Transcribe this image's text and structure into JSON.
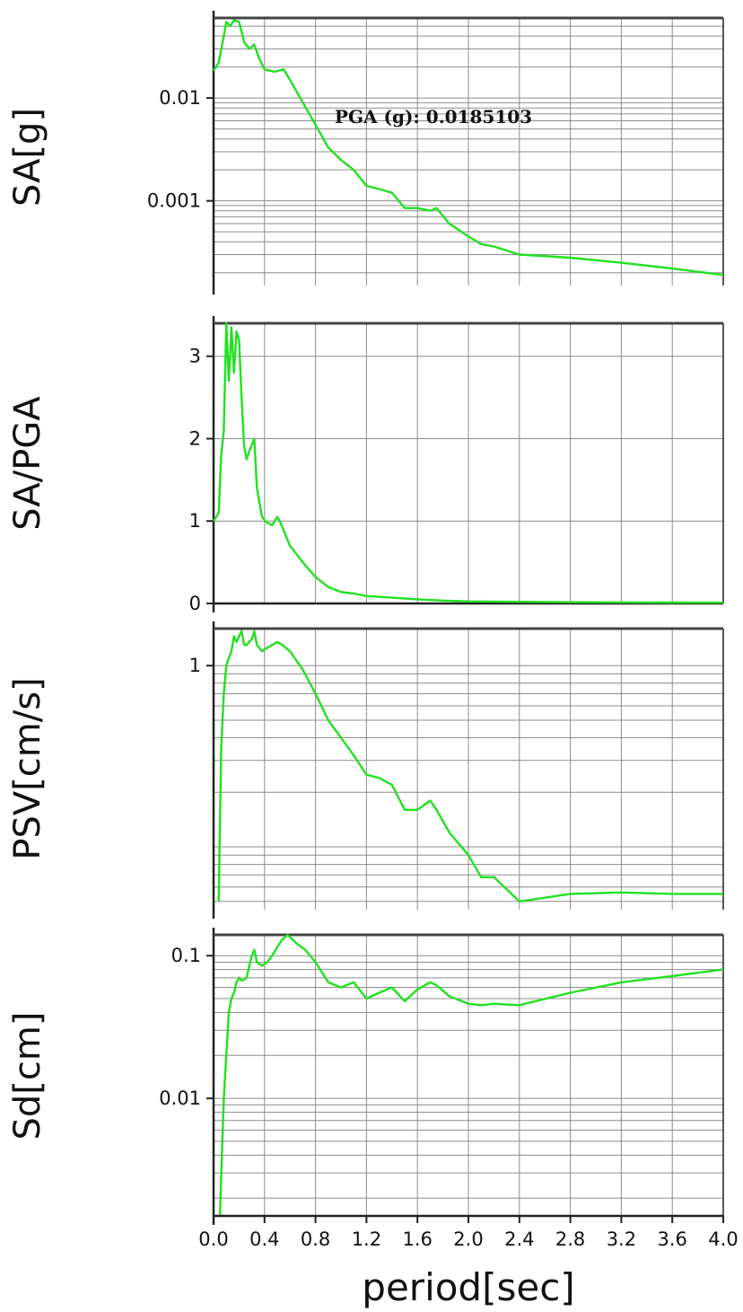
{
  "xaxis": {
    "label": "period[sec]",
    "ticks": [
      "0.0",
      "0.4",
      "0.8",
      "1.2",
      "1.6",
      "2.0",
      "2.4",
      "2.8",
      "3.2",
      "3.6",
      "4.0"
    ]
  },
  "colors": {
    "curve": "#22e022",
    "grid": "#8c8c8c",
    "frame": "#222222"
  },
  "chart_data": [
    {
      "type": "line",
      "ylabel": "SA[g]",
      "yscale": "log",
      "ylim": [
        0.00015,
        0.06
      ],
      "xlim": [
        0,
        4
      ],
      "yticks": [
        {
          "value": 0.01,
          "label": "0.01"
        },
        {
          "value": 0.001,
          "label": "0.001"
        }
      ],
      "annotation": "PGA (g): 0.0185103",
      "grid": true,
      "series": [
        {
          "x": [
            0.0,
            0.04,
            0.08,
            0.1,
            0.13,
            0.16,
            0.2,
            0.24,
            0.28,
            0.32,
            0.36,
            0.4,
            0.48,
            0.55,
            0.6,
            0.68,
            0.8,
            0.9,
            1.0,
            1.1,
            1.2,
            1.3,
            1.4,
            1.5,
            1.6,
            1.7,
            1.75,
            1.85,
            2.0,
            2.1,
            2.2,
            2.4,
            2.8,
            3.2,
            3.6,
            4.0
          ],
          "y": [
            0.0185,
            0.022,
            0.04,
            0.055,
            0.05,
            0.057,
            0.055,
            0.035,
            0.03,
            0.033,
            0.024,
            0.019,
            0.018,
            0.019,
            0.015,
            0.01,
            0.0055,
            0.0033,
            0.0025,
            0.002,
            0.0014,
            0.0013,
            0.0012,
            0.00085,
            0.00085,
            0.0008,
            0.00085,
            0.0006,
            0.00045,
            0.00038,
            0.00036,
            0.0003,
            0.00028,
            0.00025,
            0.00022,
            0.00019
          ]
        }
      ]
    },
    {
      "type": "line",
      "ylabel": "SA/PGA",
      "yscale": "linear",
      "ylim": [
        0,
        3.4
      ],
      "xlim": [
        0,
        4
      ],
      "yticks": [
        {
          "value": 0,
          "label": "0"
        },
        {
          "value": 1,
          "label": "1"
        },
        {
          "value": 2,
          "label": "2"
        },
        {
          "value": 3,
          "label": "3"
        }
      ],
      "grid": true,
      "series": [
        {
          "x": [
            0.0,
            0.04,
            0.06,
            0.08,
            0.1,
            0.12,
            0.14,
            0.16,
            0.18,
            0.2,
            0.22,
            0.24,
            0.26,
            0.28,
            0.32,
            0.34,
            0.38,
            0.42,
            0.46,
            0.5,
            0.52,
            0.56,
            0.6,
            0.7,
            0.8,
            0.9,
            1.0,
            1.1,
            1.2,
            1.4,
            1.6,
            1.8,
            2.0,
            2.4,
            2.8,
            3.2,
            3.6,
            4.0
          ],
          "y": [
            1.0,
            1.1,
            1.8,
            2.1,
            3.4,
            2.7,
            3.35,
            2.8,
            3.3,
            3.2,
            2.5,
            1.9,
            1.75,
            1.85,
            2.0,
            1.4,
            1.05,
            0.98,
            0.95,
            1.05,
            1.0,
            0.85,
            0.7,
            0.5,
            0.32,
            0.2,
            0.14,
            0.12,
            0.09,
            0.07,
            0.05,
            0.035,
            0.025,
            0.02,
            0.015,
            0.013,
            0.011,
            0.01
          ]
        }
      ]
    },
    {
      "type": "line",
      "ylabel": "PSV[cm/s]",
      "yscale": "log",
      "ylim": [
        0.045,
        1.6
      ],
      "xlim": [
        0,
        4
      ],
      "yticks": [
        {
          "value": 1,
          "label": "1"
        }
      ],
      "grid": true,
      "series": [
        {
          "x": [
            0.04,
            0.06,
            0.08,
            0.1,
            0.12,
            0.14,
            0.16,
            0.18,
            0.2,
            0.22,
            0.24,
            0.26,
            0.3,
            0.32,
            0.34,
            0.38,
            0.42,
            0.46,
            0.5,
            0.54,
            0.6,
            0.7,
            0.8,
            0.9,
            1.0,
            1.1,
            1.2,
            1.3,
            1.4,
            1.5,
            1.6,
            1.7,
            1.75,
            1.85,
            2.0,
            2.1,
            2.2,
            2.4,
            2.8,
            3.2,
            3.6,
            4.0
          ],
          "y": [
            0.05,
            0.35,
            0.7,
            1.0,
            1.1,
            1.2,
            1.45,
            1.35,
            1.45,
            1.55,
            1.3,
            1.3,
            1.4,
            1.55,
            1.3,
            1.2,
            1.25,
            1.3,
            1.35,
            1.3,
            1.2,
            0.95,
            0.7,
            0.5,
            0.4,
            0.32,
            0.25,
            0.24,
            0.22,
            0.16,
            0.16,
            0.18,
            0.16,
            0.12,
            0.09,
            0.068,
            0.068,
            0.05,
            0.055,
            0.056,
            0.055,
            0.055
          ]
        }
      ]
    },
    {
      "type": "line",
      "ylabel": "Sd[cm]",
      "yscale": "log",
      "ylim": [
        0.0015,
        0.14
      ],
      "xlim": [
        0,
        4
      ],
      "yticks": [
        {
          "value": 0.1,
          "label": "0.1"
        },
        {
          "value": 0.01,
          "label": "0.01"
        }
      ],
      "grid": true,
      "series": [
        {
          "x": [
            0.05,
            0.08,
            0.1,
            0.12,
            0.14,
            0.16,
            0.18,
            0.2,
            0.22,
            0.24,
            0.26,
            0.28,
            0.3,
            0.32,
            0.34,
            0.38,
            0.42,
            0.46,
            0.5,
            0.54,
            0.58,
            0.62,
            0.66,
            0.72,
            0.8,
            0.9,
            1.0,
            1.1,
            1.2,
            1.3,
            1.4,
            1.5,
            1.6,
            1.7,
            1.75,
            1.85,
            2.0,
            2.1,
            2.2,
            2.4,
            2.8,
            3.2,
            3.6,
            4.0
          ],
          "y": [
            0.0015,
            0.01,
            0.02,
            0.04,
            0.05,
            0.055,
            0.065,
            0.07,
            0.067,
            0.068,
            0.07,
            0.085,
            0.1,
            0.11,
            0.09,
            0.085,
            0.09,
            0.1,
            0.115,
            0.13,
            0.14,
            0.13,
            0.12,
            0.11,
            0.09,
            0.065,
            0.06,
            0.065,
            0.05,
            0.055,
            0.06,
            0.048,
            0.058,
            0.065,
            0.062,
            0.052,
            0.046,
            0.045,
            0.046,
            0.045,
            0.055,
            0.065,
            0.072,
            0.08
          ]
        }
      ]
    }
  ]
}
